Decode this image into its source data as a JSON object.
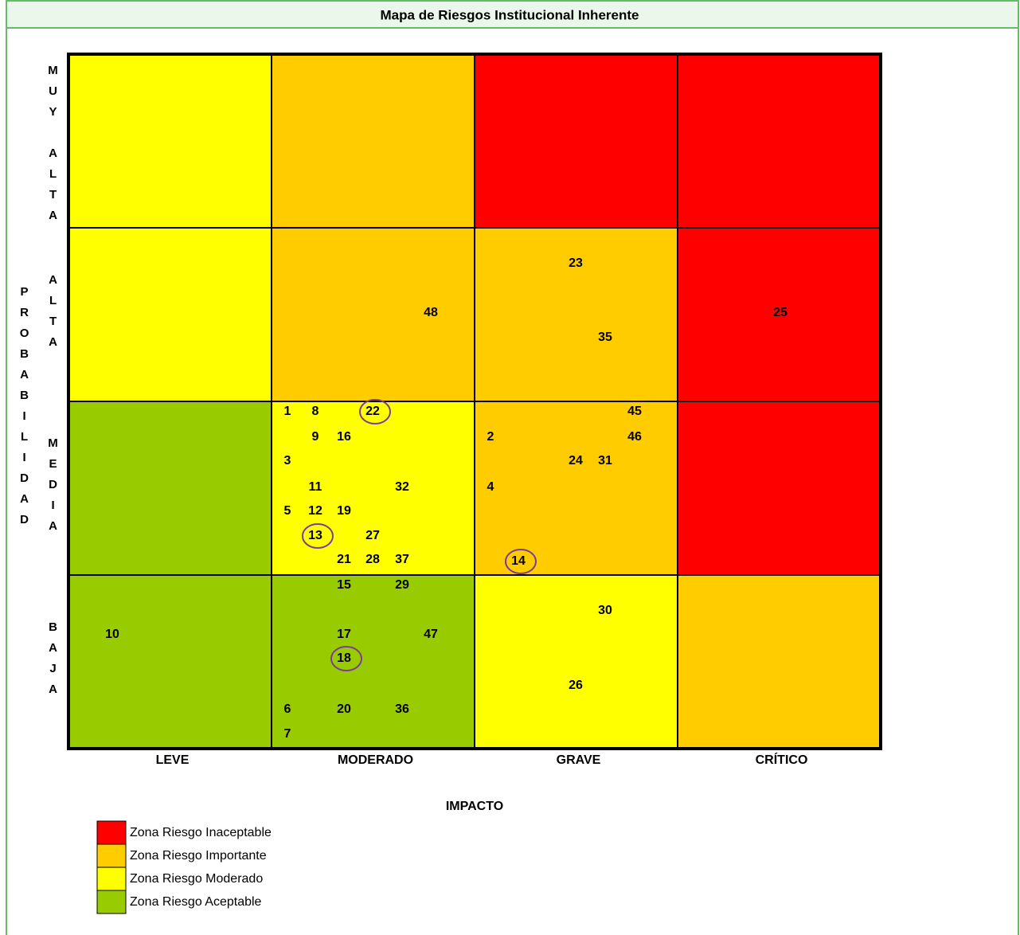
{
  "title": "Mapa de Riesgos Institucional Inherente",
  "y_axis_label": "PROBABILIDAD",
  "x_axis_label": "IMPACTO",
  "rows": [
    "MUY ALTA",
    "ALTA",
    "MEDIA",
    "BAJA"
  ],
  "columns": [
    "LEVE",
    "MODERADO",
    "GRAVE",
    "CRÍTICO"
  ],
  "zones": [
    {
      "name": "Zona Riesgo Inaceptable",
      "color": "#ff0000"
    },
    {
      "name": "Zona Riesgo Importante",
      "color": "#ffcc00"
    },
    {
      "name": "Zona Riesgo Moderado",
      "color": "#ffff00"
    },
    {
      "name": "Zona Riesgo Aceptable",
      "color": "#99cc00"
    }
  ],
  "cells": [
    [
      {
        "zone": 2,
        "risks": []
      },
      {
        "zone": 1,
        "risks": []
      },
      {
        "zone": 0,
        "risks": []
      },
      {
        "zone": 0,
        "risks": []
      }
    ],
    [
      {
        "zone": 2,
        "risks": []
      },
      {
        "zone": 1,
        "risks": [
          {
            "label": "48",
            "circled": false
          }
        ]
      },
      {
        "zone": 1,
        "risks": [
          {
            "label": "23",
            "circled": false
          },
          {
            "label": "35",
            "circled": false
          }
        ]
      },
      {
        "zone": 0,
        "risks": [
          {
            "label": "25",
            "circled": false
          }
        ]
      }
    ],
    [
      {
        "zone": 3,
        "risks": []
      },
      {
        "zone": 2,
        "risks": [
          {
            "label": "1",
            "circled": false
          },
          {
            "label": "8",
            "circled": false
          },
          {
            "label": "22",
            "circled": true
          },
          {
            "label": "9",
            "circled": false
          },
          {
            "label": "16",
            "circled": false
          },
          {
            "label": "3",
            "circled": false
          },
          {
            "label": "11",
            "circled": false
          },
          {
            "label": "32",
            "circled": false
          },
          {
            "label": "5",
            "circled": false
          },
          {
            "label": "12",
            "circled": false
          },
          {
            "label": "19",
            "circled": false
          },
          {
            "label": "13",
            "circled": true
          },
          {
            "label": "27",
            "circled": false
          },
          {
            "label": "21",
            "circled": false
          },
          {
            "label": "28",
            "circled": false
          },
          {
            "label": "37",
            "circled": false
          }
        ]
      },
      {
        "zone": 1,
        "risks": [
          {
            "label": "45",
            "circled": false
          },
          {
            "label": "2",
            "circled": false
          },
          {
            "label": "46",
            "circled": false
          },
          {
            "label": "24",
            "circled": false
          },
          {
            "label": "31",
            "circled": false
          },
          {
            "label": "4",
            "circled": false
          },
          {
            "label": "14",
            "circled": true
          }
        ]
      },
      {
        "zone": 0,
        "risks": []
      }
    ],
    [
      {
        "zone": 3,
        "risks": [
          {
            "label": "10",
            "circled": false
          }
        ]
      },
      {
        "zone": 3,
        "risks": [
          {
            "label": "15",
            "circled": false
          },
          {
            "label": "29",
            "circled": false
          },
          {
            "label": "17",
            "circled": false
          },
          {
            "label": "47",
            "circled": false
          },
          {
            "label": "18",
            "circled": true
          },
          {
            "label": "6",
            "circled": false
          },
          {
            "label": "20",
            "circled": false
          },
          {
            "label": "36",
            "circled": false
          },
          {
            "label": "7",
            "circled": false
          }
        ]
      },
      {
        "zone": 2,
        "risks": [
          {
            "label": "30",
            "circled": false
          },
          {
            "label": "26",
            "circled": false
          }
        ]
      },
      {
        "zone": 1,
        "risks": []
      }
    ]
  ]
}
